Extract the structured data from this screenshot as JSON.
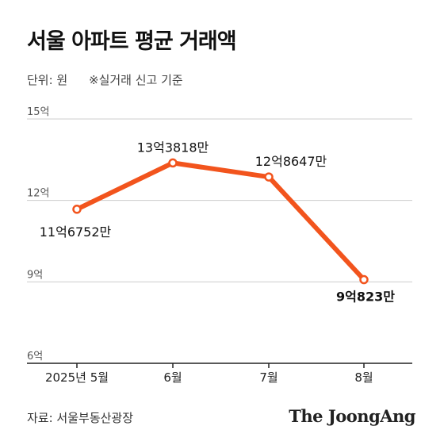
{
  "title": "서울 아파트 평균 거래액",
  "unit_label": "단위: 원",
  "note": "※실거래 신고 기준",
  "source": "자료: 서울부동산광장",
  "brand": "The JoongAng",
  "colors": {
    "line": "#f2541d",
    "grid": "#cccccc",
    "axis": "#222222"
  },
  "chart_data": {
    "type": "line",
    "categories": [
      "2025년 5월",
      "6월",
      "7월",
      "8월"
    ],
    "series": [
      {
        "values": [
          11.6752,
          13.3818,
          12.8647,
          9.0823
        ],
        "labels": [
          "11억6752만",
          "13억3818만",
          "12억8647만",
          "9억823만"
        ]
      }
    ],
    "ylim": [
      6,
      15
    ],
    "yticks": [
      6,
      9,
      12,
      15
    ],
    "ytick_labels": [
      "6억",
      "9억",
      "12억",
      "15억"
    ],
    "grid": true
  }
}
